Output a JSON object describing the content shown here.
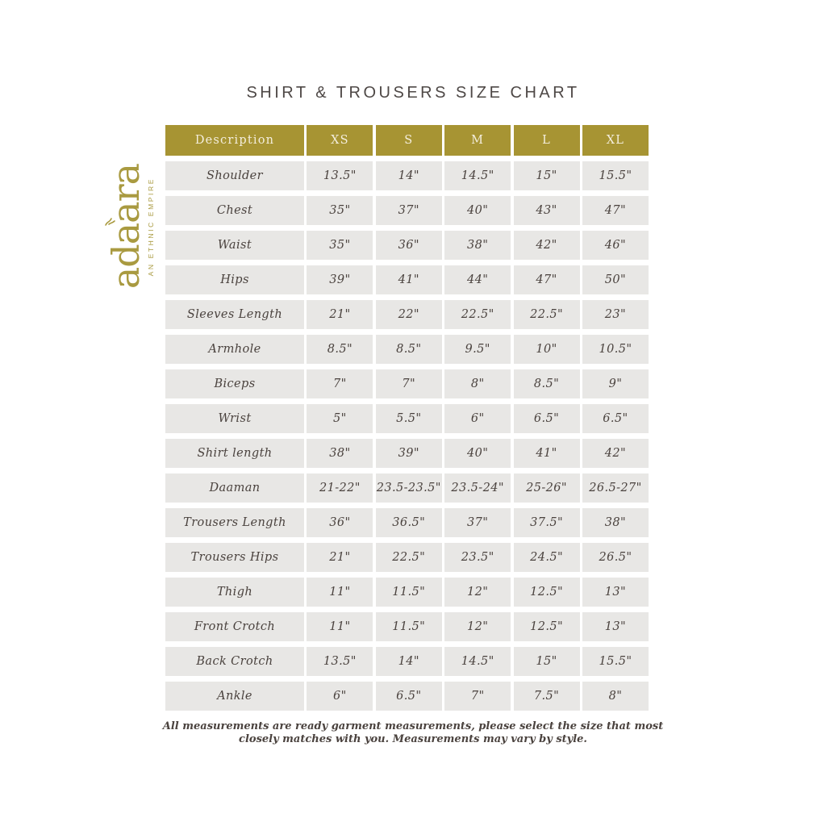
{
  "page": {
    "title": "SHIRT & TROUSERS SIZE CHART"
  },
  "logo": {
    "brand": "adaara",
    "tagline": "AN ETHNIC EMPIRE"
  },
  "table": {
    "columns": [
      "Description",
      "XS",
      "S",
      "M",
      "L",
      "XL"
    ],
    "rows": [
      {
        "label": "Shoulder",
        "values": [
          "13.5\"",
          "14\"",
          "14.5\"",
          "15\"",
          "15.5\""
        ]
      },
      {
        "label": "Chest",
        "values": [
          "35\"",
          "37\"",
          "40\"",
          "43\"",
          "47\""
        ]
      },
      {
        "label": "Waist",
        "values": [
          "35\"",
          "36\"",
          "38\"",
          "42\"",
          "46\""
        ]
      },
      {
        "label": "Hips",
        "values": [
          "39\"",
          "41\"",
          "44\"",
          "47\"",
          "50\""
        ]
      },
      {
        "label": "Sleeves Length",
        "values": [
          "21\"",
          "22\"",
          "22.5\"",
          "22.5\"",
          "23\""
        ]
      },
      {
        "label": "Armhole",
        "values": [
          "8.5\"",
          "8.5\"",
          "9.5\"",
          "10\"",
          "10.5\""
        ]
      },
      {
        "label": "Biceps",
        "values": [
          "7\"",
          "7\"",
          "8\"",
          "8.5\"",
          "9\""
        ]
      },
      {
        "label": "Wrist",
        "values": [
          "5\"",
          "5.5\"",
          "6\"",
          "6.5\"",
          "6.5\""
        ]
      },
      {
        "label": "Shirt length",
        "values": [
          "38\"",
          "39\"",
          "40\"",
          "41\"",
          "42\""
        ]
      },
      {
        "label": "Daaman",
        "values": [
          "21-22\"",
          "23.5-23.5\"",
          "23.5-24\"",
          "25-26\"",
          "26.5-27\""
        ]
      },
      {
        "label": "Trousers Length",
        "values": [
          "36\"",
          "36.5\"",
          "37\"",
          "37.5\"",
          "38\""
        ]
      },
      {
        "label": "Trousers Hips",
        "values": [
          "21\"",
          "22.5\"",
          "23.5\"",
          "24.5\"",
          "26.5\""
        ]
      },
      {
        "label": "Thigh",
        "values": [
          "11\"",
          "11.5\"",
          "12\"",
          "12.5\"",
          "13\""
        ]
      },
      {
        "label": "Front Crotch",
        "values": [
          "11\"",
          "11.5\"",
          "12\"",
          "12.5\"",
          "13\""
        ]
      },
      {
        "label": "Back Crotch",
        "values": [
          "13.5\"",
          "14\"",
          "14.5\"",
          "15\"",
          "15.5\""
        ]
      },
      {
        "label": "Ankle",
        "values": [
          "6\"",
          "6.5\"",
          "7\"",
          "7.5\"",
          "8\""
        ]
      }
    ]
  },
  "footer": {
    "line1": "All measurements are ready garment measurements, please select the size that most",
    "line2": "closely matches with you. Measurements may vary by style."
  },
  "colors": {
    "header_bg": "#a79433",
    "header_text": "#f4eedd",
    "cell_bg": "#e8e7e5",
    "cell_text": "#4a423e",
    "brand_gold": "#a99a40",
    "title_text": "#4e4846"
  }
}
